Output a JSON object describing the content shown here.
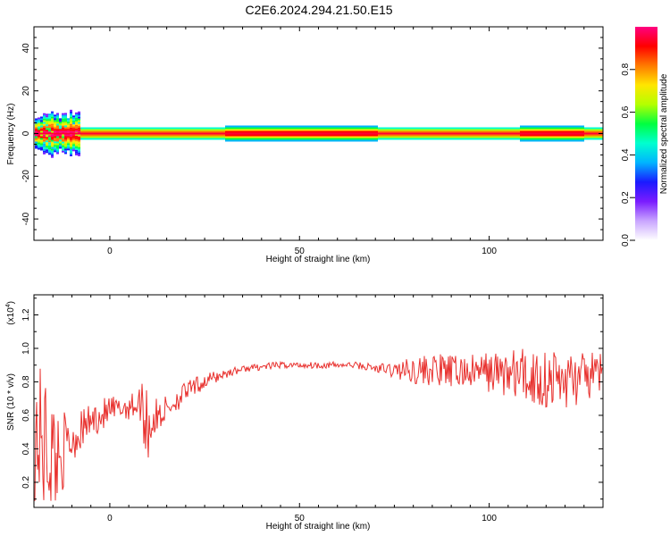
{
  "title": "C2E6.2024.294.21.50.E15",
  "chart_data": [
    {
      "type": "heatmap",
      "xlabel": "Height of straight line (km)",
      "ylabel": "Frequency (Hz)",
      "xlim": [
        -20,
        130
      ],
      "ylim": [
        -50,
        50
      ],
      "x_ticks": [
        0,
        50,
        100
      ],
      "y_ticks": [
        -40,
        -20,
        0,
        20,
        40
      ],
      "colorbar": {
        "label": "Normalized spectral amplitude",
        "range": [
          0,
          1
        ],
        "ticks": [
          "0.0",
          "0.2",
          "0.4",
          "0.6",
          "0.8"
        ],
        "colors": [
          "#ffffff",
          "#c9a5ff",
          "#7a1cff",
          "#1a1aff",
          "#00b4ff",
          "#00ffd0",
          "#00ff40",
          "#b4ff00",
          "#ffe600",
          "#ff7a00",
          "#ff0000",
          "#ff0080"
        ]
      },
      "band_center_hz": 0,
      "band_description": "energy concentrated near 0 Hz across full height range"
    },
    {
      "type": "line",
      "xlabel": "Height of straight line (km)",
      "ylabel": "SNR (10 * v/v)",
      "y_multiplier_label": "(x10",
      "y_multiplier_exp": "4",
      "xlim": [
        -20,
        130
      ],
      "ylim": [
        0.05,
        1.32
      ],
      "x_ticks": [
        0,
        50,
        100
      ],
      "y_ticks": [
        "0.2",
        "0.4",
        "0.6",
        "0.8",
        "1.0",
        "1.2"
      ],
      "series": [
        {
          "color": "#e8312e",
          "x": [
            -20,
            -18,
            -16,
            -14,
            -12,
            -10,
            -8,
            -6,
            -4,
            -2,
            0,
            2,
            4,
            6,
            8,
            9,
            10,
            12,
            14,
            16,
            18,
            20,
            24,
            28,
            32,
            36,
            40,
            45,
            50,
            55,
            60,
            65,
            70,
            75,
            80,
            85,
            90,
            95,
            100,
            105,
            110,
            115,
            120,
            125,
            130
          ],
          "y": [
            0.5,
            0.45,
            0.4,
            0.35,
            0.4,
            0.45,
            0.5,
            0.55,
            0.58,
            0.6,
            0.62,
            0.63,
            0.65,
            0.66,
            0.67,
            0.65,
            0.55,
            0.58,
            0.62,
            0.66,
            0.7,
            0.74,
            0.79,
            0.83,
            0.86,
            0.88,
            0.89,
            0.9,
            0.9,
            0.9,
            0.9,
            0.9,
            0.88,
            0.87,
            0.87,
            0.87,
            0.86,
            0.86,
            0.86,
            0.85,
            0.83,
            0.82,
            0.81,
            0.82,
            0.86
          ],
          "noise_amplitude": [
            0.4,
            0.45,
            0.4,
            0.3,
            0.22,
            0.15,
            0.12,
            0.1,
            0.1,
            0.1,
            0.1,
            0.08,
            0.08,
            0.08,
            0.1,
            0.3,
            0.25,
            0.12,
            0.09,
            0.08,
            0.07,
            0.06,
            0.05,
            0.04,
            0.025,
            0.02,
            0.02,
            0.02,
            0.02,
            0.02,
            0.02,
            0.02,
            0.03,
            0.05,
            0.08,
            0.1,
            0.1,
            0.1,
            0.12,
            0.15,
            0.18,
            0.2,
            0.18,
            0.15,
            0.12
          ]
        }
      ]
    }
  ]
}
